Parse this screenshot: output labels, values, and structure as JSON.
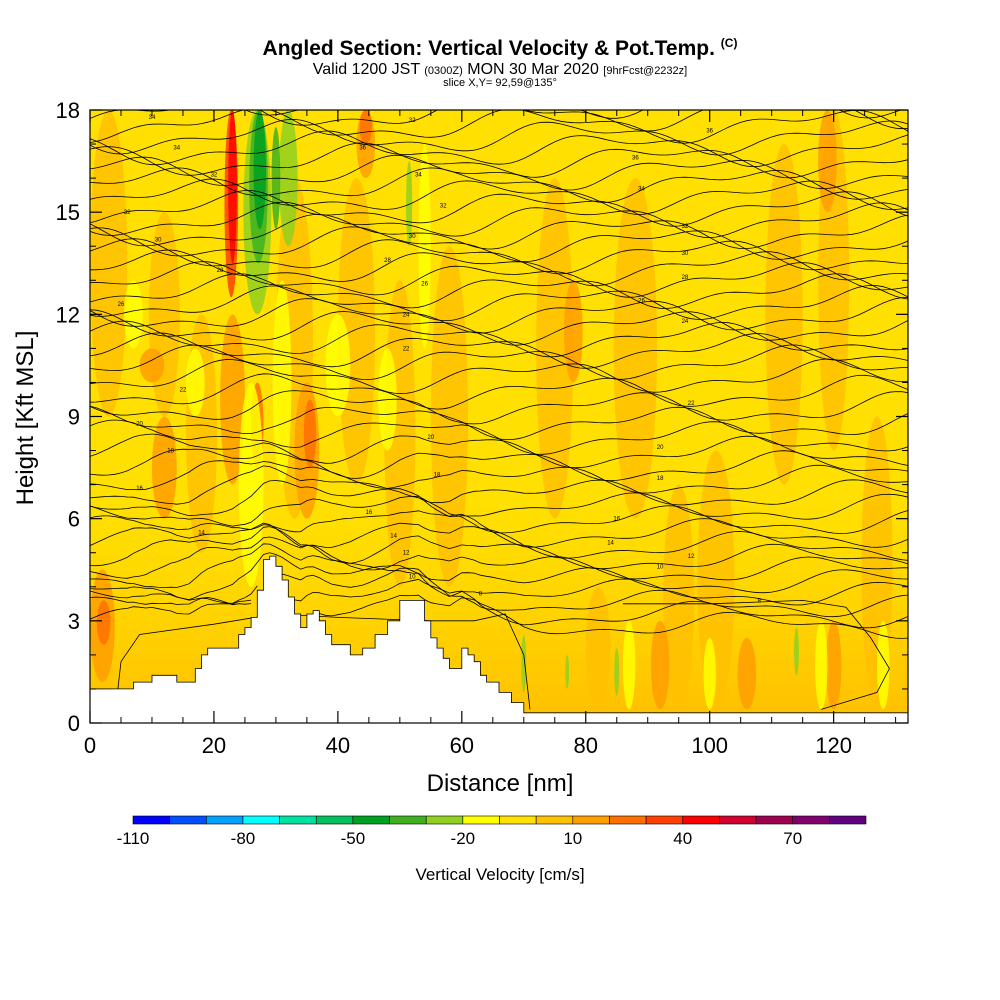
{
  "chart_data": {
    "type": "heatmap",
    "title": "Angled Section: Vertical Velocity & Pot.Temp.",
    "title_suffix": "(C)",
    "subtitle_main_left": "Valid 1200 JST",
    "subtitle_small_1": "(0300Z)",
    "subtitle_main_right": "MON 30 Mar 2020",
    "subtitle_small_2": "[9hrFcst@2232z]",
    "subtitle2": "slice X,Y= 92,59@135°",
    "xlabel": "Distance [nm]",
    "ylabel": "Height [Kft MSL]",
    "xlim": [
      0,
      132
    ],
    "ylim": [
      0,
      18
    ],
    "x_ticks": [
      0,
      20,
      40,
      60,
      80,
      100,
      120
    ],
    "y_ticks": [
      0,
      3,
      6,
      9,
      12,
      15,
      18
    ],
    "colorbar": {
      "title": "Vertical Velocity [cm/s]",
      "tick_labels": [
        "-110",
        "-80",
        "-50",
        "-20",
        "10",
        "40",
        "70"
      ],
      "colors": [
        "#0000ff",
        "#0050ff",
        "#00a0ff",
        "#00ffff",
        "#00e0a0",
        "#00c060",
        "#00a020",
        "#40b020",
        "#90d020",
        "#ffff00",
        "#ffe000",
        "#ffc000",
        "#ff9e00",
        "#ff7000",
        "#ff4000",
        "#ff0000",
        "#d00030",
        "#a00050",
        "#800070",
        "#600080"
      ]
    },
    "terrain_profile": [
      [
        0,
        1.0
      ],
      [
        6,
        1.0
      ],
      [
        7,
        1.2
      ],
      [
        9,
        1.2
      ],
      [
        10,
        1.4
      ],
      [
        13,
        1.4
      ],
      [
        14,
        1.2
      ],
      [
        16,
        1.2
      ],
      [
        17,
        1.6
      ],
      [
        18,
        2.0
      ],
      [
        19,
        2.2
      ],
      [
        23,
        2.2
      ],
      [
        24,
        2.6
      ],
      [
        25,
        2.8
      ],
      [
        26,
        3.1
      ],
      [
        27,
        3.9
      ],
      [
        28,
        4.8
      ],
      [
        29,
        4.9
      ],
      [
        30,
        4.6
      ],
      [
        31,
        4.2
      ],
      [
        32,
        3.7
      ],
      [
        33,
        3.2
      ],
      [
        34,
        2.8
      ],
      [
        35,
        3.2
      ],
      [
        36,
        3.3
      ],
      [
        37,
        3.0
      ],
      [
        38,
        2.6
      ],
      [
        39,
        2.3
      ],
      [
        42,
        2.0
      ],
      [
        44,
        2.2
      ],
      [
        46,
        2.6
      ],
      [
        48,
        3.0
      ],
      [
        50,
        3.6
      ],
      [
        53,
        3.6
      ],
      [
        54,
        3.0
      ],
      [
        55,
        2.5
      ],
      [
        56,
        2.2
      ],
      [
        57,
        1.9
      ],
      [
        58,
        1.6
      ],
      [
        60,
        2.2
      ],
      [
        61,
        2.0
      ],
      [
        62,
        1.8
      ],
      [
        63,
        1.4
      ],
      [
        64,
        1.2
      ],
      [
        66,
        0.9
      ],
      [
        68,
        0.6
      ],
      [
        70,
        0.3
      ],
      [
        132,
        0.3
      ]
    ],
    "isentrope_labels": [
      {
        "text": "34",
        "x": 10,
        "y": 17.8
      },
      {
        "text": "34",
        "x": 14,
        "y": 16.9
      },
      {
        "text": "32",
        "x": 20,
        "y": 16.1
      },
      {
        "text": "32",
        "x": 6,
        "y": 15.0
      },
      {
        "text": "30",
        "x": 11,
        "y": 14.2
      },
      {
        "text": "28",
        "x": 21,
        "y": 13.3
      },
      {
        "text": "26",
        "x": 5,
        "y": 12.3
      },
      {
        "text": "36",
        "x": 44,
        "y": 16.9
      },
      {
        "text": "34",
        "x": 53,
        "y": 16.1
      },
      {
        "text": "32",
        "x": 57,
        "y": 15.2
      },
      {
        "text": "30",
        "x": 52,
        "y": 14.3
      },
      {
        "text": "28",
        "x": 48,
        "y": 13.6
      },
      {
        "text": "26",
        "x": 54,
        "y": 12.9
      },
      {
        "text": "24",
        "x": 51,
        "y": 12.0
      },
      {
        "text": "22",
        "x": 51,
        "y": 11.0
      },
      {
        "text": "32",
        "x": 52,
        "y": 17.7
      },
      {
        "text": "36",
        "x": 100,
        "y": 17.4
      },
      {
        "text": "36",
        "x": 88,
        "y": 16.6
      },
      {
        "text": "34",
        "x": 89,
        "y": 15.7
      },
      {
        "text": "32",
        "x": 96,
        "y": 14.6
      },
      {
        "text": "30",
        "x": 96,
        "y": 13.8
      },
      {
        "text": "28",
        "x": 96,
        "y": 13.1
      },
      {
        "text": "26",
        "x": 89,
        "y": 12.4
      },
      {
        "text": "24",
        "x": 96,
        "y": 11.8
      },
      {
        "text": "22",
        "x": 97,
        "y": 9.4
      },
      {
        "text": "22",
        "x": 15,
        "y": 9.8
      },
      {
        "text": "20",
        "x": 8,
        "y": 8.8
      },
      {
        "text": "20",
        "x": 55,
        "y": 8.4
      },
      {
        "text": "20",
        "x": 92,
        "y": 8.1
      },
      {
        "text": "18",
        "x": 13,
        "y": 8.0
      },
      {
        "text": "18",
        "x": 56,
        "y": 7.3
      },
      {
        "text": "18",
        "x": 92,
        "y": 7.2
      },
      {
        "text": "16",
        "x": 8,
        "y": 6.9
      },
      {
        "text": "16",
        "x": 45,
        "y": 6.2
      },
      {
        "text": "16",
        "x": 85,
        "y": 6.0
      },
      {
        "text": "14",
        "x": 18,
        "y": 5.6
      },
      {
        "text": "14",
        "x": 49,
        "y": 5.5
      },
      {
        "text": "14",
        "x": 84,
        "y": 5.3
      },
      {
        "text": "12",
        "x": 51,
        "y": 5.0
      },
      {
        "text": "12",
        "x": 97,
        "y": 4.9
      },
      {
        "text": "10",
        "x": 52,
        "y": 4.3
      },
      {
        "text": "10",
        "x": 92,
        "y": 4.6
      },
      {
        "text": "8",
        "x": 63,
        "y": 3.8
      },
      {
        "text": "8",
        "x": 108,
        "y": 3.6
      }
    ]
  }
}
